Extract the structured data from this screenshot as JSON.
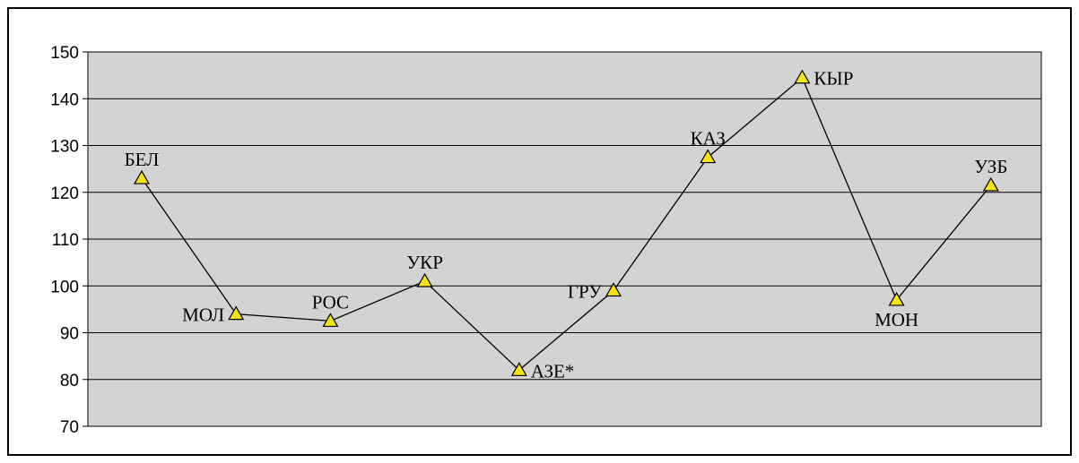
{
  "chart_data": {
    "type": "line",
    "title": "",
    "xlabel": "",
    "ylabel": "",
    "ylim": [
      70,
      150
    ],
    "yticks": [
      70,
      80,
      90,
      100,
      110,
      120,
      130,
      140,
      150
    ],
    "grid": true,
    "categories": [
      "БЕЛ",
      "МОЛ",
      "РОС",
      "УКР",
      "АЗЕ*",
      "ГРУ",
      "КАЗ",
      "КЫР",
      "МОН",
      "УЗБ"
    ],
    "values": [
      123,
      94,
      92.5,
      101,
      82,
      99,
      127.5,
      144.5,
      97,
      121.5
    ],
    "label_position": [
      "above",
      "left",
      "above",
      "above",
      "right",
      "left",
      "above",
      "right",
      "below",
      "above"
    ],
    "colors": {
      "plot_background": "#d3d3d3",
      "marker_fill": "#f5e316",
      "line": "#000000",
      "gridline": "#000000"
    }
  }
}
